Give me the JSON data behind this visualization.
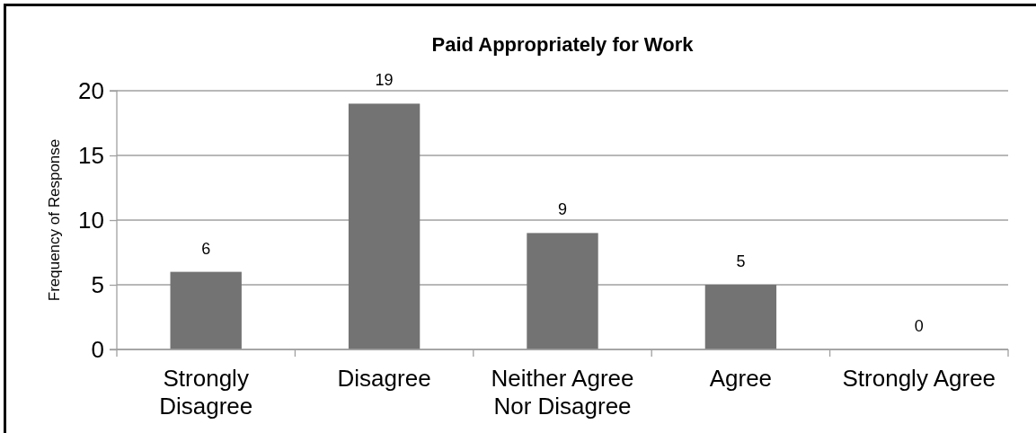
{
  "chart_data": {
    "type": "bar",
    "title": "Paid Appropriately for Work",
    "ylabel": "Frequency of Response",
    "categories": [
      "Strongly Disagree",
      "Disagree",
      "Neither Agree Nor Disagree",
      "Agree",
      "Strongly Agree"
    ],
    "values": [
      6,
      19,
      9,
      5,
      0
    ],
    "color": "#737373",
    "ylim": [
      0,
      20
    ],
    "yticks": [
      0,
      5,
      10,
      15,
      20
    ],
    "grid": "y",
    "data_labels": true
  }
}
